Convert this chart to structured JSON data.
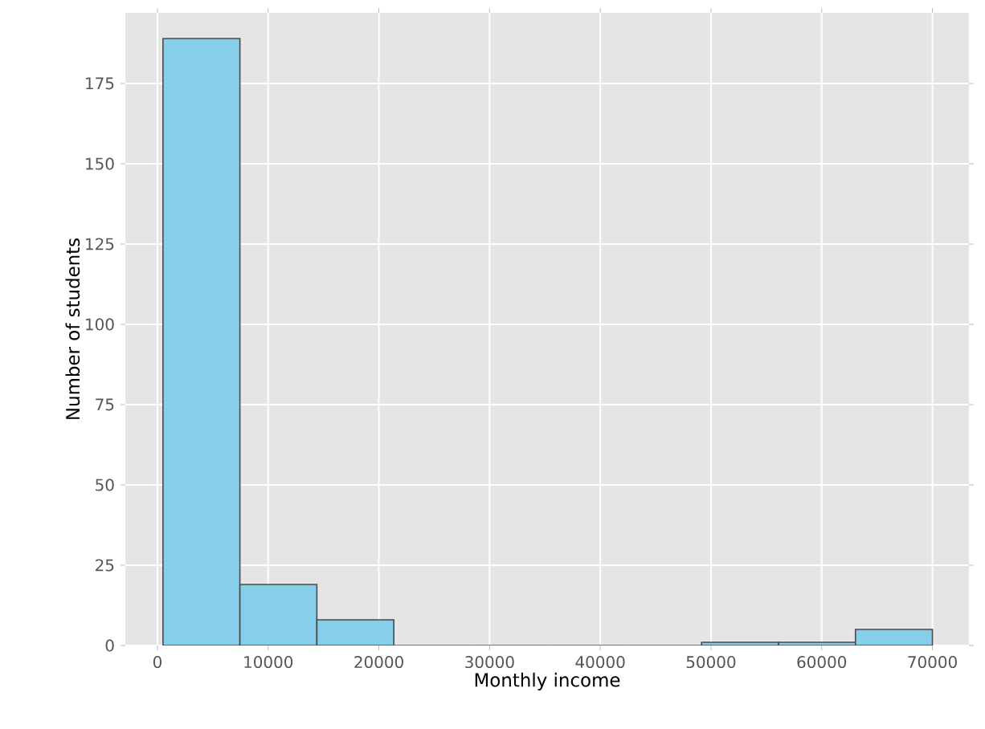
{
  "chart_data": {
    "type": "histogram",
    "xlabel": "Monthly income",
    "ylabel": "Number of students",
    "bins": [
      500,
      7450,
      14400,
      21350,
      28300,
      35250,
      42200,
      49150,
      56100,
      63050,
      70000
    ],
    "values": [
      189,
      19,
      8,
      0,
      0,
      0,
      0,
      1,
      1,
      5
    ],
    "color": "#87ceeb",
    "xlim": [
      -2900,
      73300
    ],
    "ylim": [
      0,
      197
    ],
    "xticks": [
      0,
      10000,
      20000,
      30000,
      40000,
      50000,
      60000,
      70000
    ],
    "yticks": [
      0,
      25,
      50,
      75,
      100,
      125,
      150,
      175
    ],
    "grid": true
  }
}
